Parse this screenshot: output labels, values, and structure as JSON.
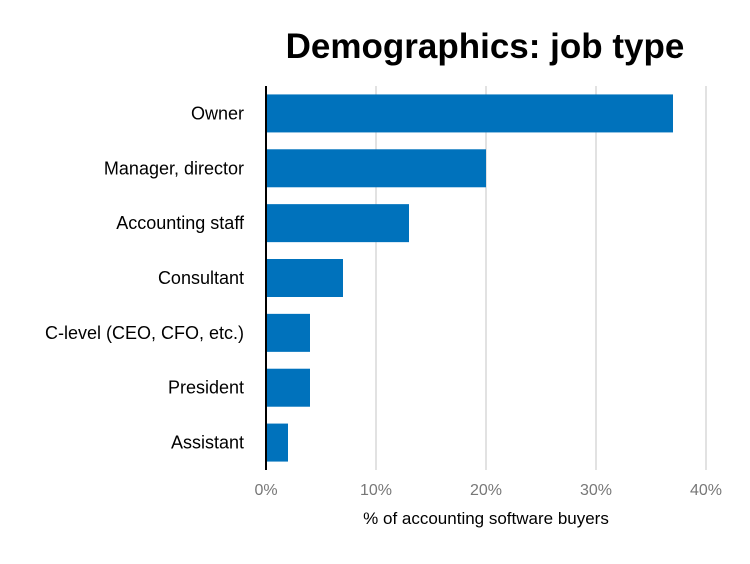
{
  "chart_data": {
    "type": "bar",
    "orientation": "horizontal",
    "title": "Demographics: job type",
    "xlabel": "% of accounting software buyers",
    "ylabel": "",
    "categories": [
      "Owner",
      "Manager, director",
      "Accounting staff",
      "Consultant",
      "C-level (CEO, CFO, etc.)",
      "President",
      "Assistant"
    ],
    "values": [
      37,
      20,
      13,
      7,
      4,
      4,
      2
    ],
    "xlim": [
      0,
      40
    ],
    "xticks": [
      "0%",
      "10%",
      "20%",
      "30%",
      "40%"
    ],
    "grid": true,
    "legend": "none",
    "colors": {
      "bar": "#0072bc",
      "grid": "#d9d9d9",
      "axis": "#000000",
      "tick_text": "#777777"
    }
  }
}
